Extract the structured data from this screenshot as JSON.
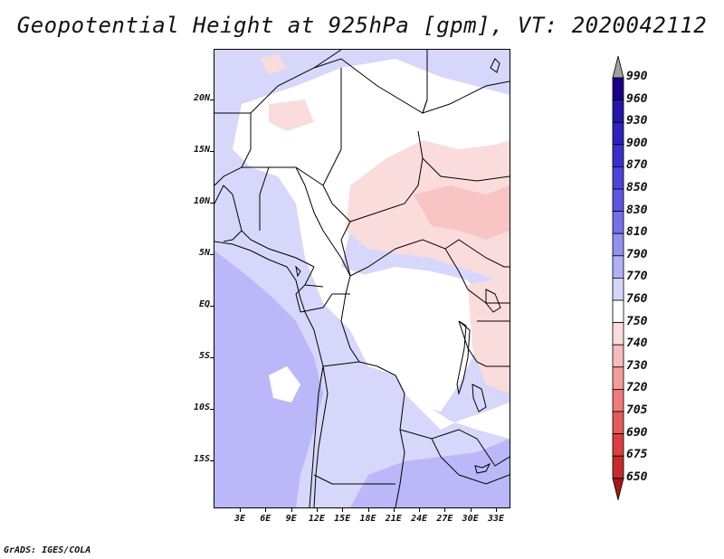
{
  "title": "Geopotential Height at 925hPa [gpm], VT: 2020042112",
  "credit": "GrADS: IGES/COLA",
  "map": {
    "lat_labels": [
      "20N",
      "15N",
      "10N",
      "5N",
      "EQ",
      "5S",
      "10S",
      "15S"
    ],
    "lon_labels": [
      "3E",
      "6E",
      "9E",
      "12E",
      "15E",
      "18E",
      "21E",
      "24E",
      "27E",
      "30E",
      "33E"
    ],
    "fields": [
      {
        "name": "deep-ocean-low",
        "color": "#a8a4f7"
      },
      {
        "name": "ocean-low",
        "color": "#bab8f8"
      },
      {
        "name": "coastal-low",
        "color": "#d7d7fb"
      },
      {
        "name": "sahel-neutral",
        "color": "#ffffff"
      },
      {
        "name": "north-high",
        "color": "#fbdcdc"
      },
      {
        "name": "east-high",
        "color": "#f8c4c4"
      }
    ]
  },
  "colorbar": {
    "levels": [
      "990",
      "960",
      "930",
      "900",
      "870",
      "850",
      "830",
      "810",
      "790",
      "770",
      "760",
      "750",
      "740",
      "730",
      "720",
      "705",
      "690",
      "675",
      "650"
    ],
    "colors": [
      "#1a0080",
      "#2416a6",
      "#2e22b8",
      "#3a30c8",
      "#4a44d8",
      "#5c58e2",
      "#7470ea",
      "#9290f0",
      "#b2b0f5",
      "#d6d6fb",
      "#ffffff",
      "#fbdcdc",
      "#f6bcbc",
      "#f29c9c",
      "#ec7c7c",
      "#e55a5a",
      "#d84040",
      "#c42c2c",
      "#a31818"
    ],
    "over_color": "#a0a0a0",
    "under_color": "#a31818"
  }
}
